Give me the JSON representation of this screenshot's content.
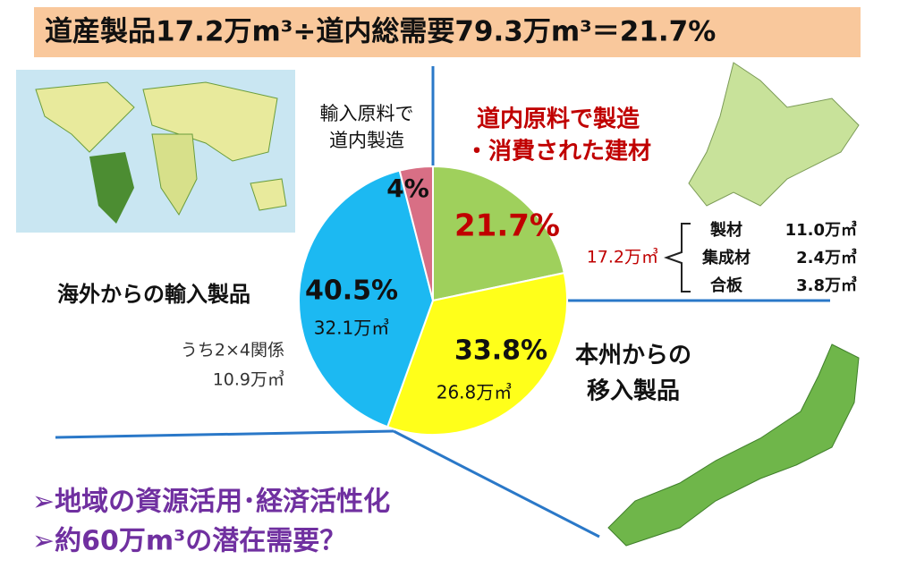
{
  "chart_data": {
    "type": "pie",
    "title": "道産製品17.2万m³÷道内総需要79.3万m³＝21.7%",
    "values": [
      21.7,
      33.8,
      40.5,
      4
    ],
    "value_labels": [
      "21.7%",
      "33.8%",
      "40.5%",
      "4%"
    ],
    "colors": [
      "#9fd05c",
      "#ffff1a",
      "#1cb9f2",
      "#d86f85"
    ],
    "labels": [
      [
        "道内原料で製造",
        "・消費された建材"
      ],
      [
        "本州からの",
        "移入製品"
      ],
      [
        "海外からの輸入製品"
      ],
      [
        "輸入原料で",
        "道内製造"
      ]
    ],
    "amounts": {
      "honshu": "26.8万㎥",
      "overseas": "32.1万㎥",
      "two_by_four": [
        "うち2×4関係",
        "10.9万㎥"
      ],
      "local_total": "17.2万㎥"
    },
    "breakdown": [
      [
        "製材",
        "11.0万㎥"
      ],
      [
        "集成材",
        "2.4万㎥"
      ],
      [
        "合板",
        "3.8万㎥"
      ]
    ],
    "bullets": [
      "➢地域の資源活用･経済活性化",
      "➢約60万m³の潜在需要？"
    ]
  }
}
